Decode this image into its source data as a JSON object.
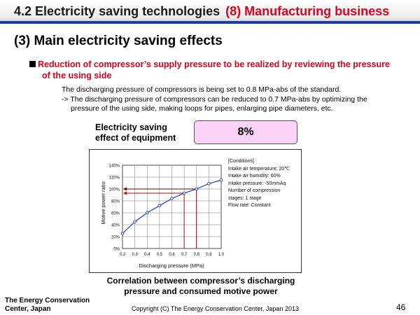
{
  "header": {
    "section": "4.2 Electricity saving technologies",
    "business": "(8) Manufacturing business"
  },
  "subtitle": "(3) Main electricity saving effects",
  "bullet": {
    "line1": "Reduction of compressor’s supply pressure to be realized by reviewing the pressure",
    "line2": "of the using side"
  },
  "body": {
    "line1": "The discharging pressure of compressors is being set to 0.8 MPa-abs of the standard.",
    "line2": "-> The discharging pressure of compressors can be reduced to 0.7 MPa-abs by optimizing the",
    "line3": "pressure of the using side, making loops for pipes, enlarging pipe diameters, etc."
  },
  "effect": {
    "label_line1": "Electricity saving",
    "label_line2": "effect of equipment",
    "value": "8%"
  },
  "chart_data": {
    "type": "line",
    "xlabel": "Discharging pressure (MPa)",
    "ylabel": "Motive power ratio",
    "x": [
      0.2,
      0.3,
      0.4,
      0.5,
      0.6,
      0.7,
      0.8,
      0.9,
      1.0
    ],
    "series": [
      {
        "values": [
          25,
          45,
          60,
          72,
          84,
          93,
          100,
          109,
          115
        ]
      }
    ],
    "xlim": [
      0.2,
      1.0
    ],
    "ylim": [
      0,
      140
    ],
    "x_ticks": [
      "0.2",
      "0.3",
      "0.4",
      "0.5",
      "0.6",
      "0.7",
      "0.8",
      "0.9",
      "1.0"
    ],
    "y_ticks": [
      "0%",
      "20%",
      "40%",
      "60%",
      "80%",
      "100%",
      "120%",
      "140%"
    ],
    "grid": true,
    "highlights": [
      {
        "x": 0.7,
        "y": 93,
        "color": "#cc0000"
      },
      {
        "x": 0.8,
        "y": 100,
        "color": "#660000"
      }
    ],
    "colors": {
      "line": "#1c3fbf",
      "grid": "#777777"
    },
    "conditions": [
      "[Conditions]",
      "Intake air temperature: 20℃",
      "Intake air humidity: 60%",
      "Intake pressure: -50mmAq",
      "Number of compression",
      "stages: 1 stage",
      "Flow rate: Constant"
    ]
  },
  "caption": {
    "line1": "Correlation between compressor’s discharging",
    "line2": "pressure and consumed motive power"
  },
  "footer": {
    "org_line1": "The Energy Conservation",
    "org_line2": "Center, Japan",
    "copyright": "Copyright (C) The Energy Conservation Center, Japan 2013",
    "page": "46"
  }
}
